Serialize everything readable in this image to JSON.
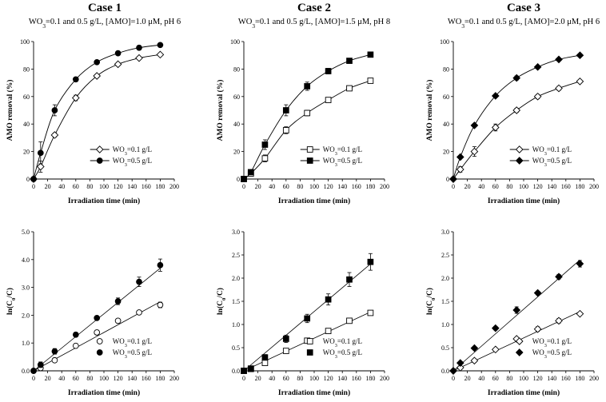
{
  "figure": {
    "cases": [
      {
        "title": "Case 1",
        "cond_main": "WO3=0.1 and 0.5 g/L, [AMO]=1.0 μM, pH 6"
      },
      {
        "title": "Case 2",
        "cond_main": "WO3=0.1 and 0.5 g/L, [AMO]=1.5 μM, pH 8"
      },
      {
        "title": "Case 3",
        "cond_main": "WO3=0.1 and 0.5 g/L, [AMO]=2.0 μM, pH 6"
      }
    ]
  },
  "chart_data": [
    {
      "id": "case1-removal",
      "type": "line",
      "case": "Case 1",
      "xlabel": "Irradiation time (min)",
      "ylabel": "AMO removal (%)",
      "xlim": [
        0,
        200
      ],
      "ylim": [
        0,
        100
      ],
      "xticks": [
        0,
        20,
        40,
        60,
        80,
        100,
        120,
        140,
        160,
        180,
        200
      ],
      "yticks": [
        0,
        20,
        40,
        60,
        80,
        100
      ],
      "legend_position": "lower-right",
      "series": [
        {
          "name": "WO3=0.1 g/L",
          "marker": "diamond-open",
          "fit": "curve",
          "x": [
            0,
            10,
            30,
            60,
            90,
            120,
            150,
            180
          ],
          "y": [
            0,
            9,
            32,
            59,
            75,
            83.5,
            88,
            90.5
          ],
          "err": [
            0,
            4,
            1.5,
            2,
            1.2,
            1.2,
            1,
            1
          ]
        },
        {
          "name": "WO3=0.5 g/L",
          "marker": "circle-filled",
          "fit": "curve",
          "x": [
            0,
            10,
            30,
            60,
            90,
            120,
            150,
            180
          ],
          "y": [
            0,
            19,
            50,
            72.5,
            85,
            91.5,
            95.5,
            97.5
          ],
          "err": [
            0,
            8,
            4,
            1.5,
            1,
            1,
            1,
            1
          ]
        }
      ]
    },
    {
      "id": "case2-removal",
      "type": "line",
      "case": "Case 2",
      "xlabel": "Irradiation time (min)",
      "ylabel": "AMO removal (%)",
      "xlim": [
        0,
        200
      ],
      "ylim": [
        0,
        100
      ],
      "xticks": [
        0,
        20,
        40,
        60,
        80,
        100,
        120,
        140,
        160,
        180,
        200
      ],
      "yticks": [
        0,
        20,
        40,
        60,
        80,
        100
      ],
      "legend_position": "lower-right",
      "series": [
        {
          "name": "WO3=0.1 g/L",
          "marker": "square-open",
          "fit": "curve",
          "x": [
            0,
            10,
            30,
            60,
            90,
            120,
            150,
            180
          ],
          "y": [
            0,
            4,
            15,
            35.5,
            48,
            57.5,
            66,
            71.5
          ],
          "err": [
            0,
            1,
            2.5,
            2.5,
            2,
            1.5,
            1.5,
            1
          ]
        },
        {
          "name": "WO3=0.5 g/L",
          "marker": "square-filled",
          "fit": "curve",
          "x": [
            0,
            10,
            30,
            60,
            90,
            120,
            150,
            180
          ],
          "y": [
            0,
            5,
            25,
            50,
            67.5,
            78.5,
            86,
            90.5
          ],
          "err": [
            0,
            1.5,
            3.5,
            4,
            3,
            2,
            1.5,
            1.5
          ]
        }
      ]
    },
    {
      "id": "case3-removal",
      "type": "line",
      "case": "Case 3",
      "xlabel": "Irradiation time (min)",
      "ylabel": "AMO removal (%)",
      "xlim": [
        0,
        200
      ],
      "ylim": [
        0,
        100
      ],
      "xticks": [
        0,
        20,
        40,
        60,
        80,
        100,
        120,
        140,
        160,
        180,
        200
      ],
      "yticks": [
        0,
        20,
        40,
        60,
        80,
        100
      ],
      "legend_position": "lower-right",
      "series": [
        {
          "name": "WO3=0.1 g/L",
          "marker": "diamond-open",
          "fit": "curve",
          "x": [
            0,
            10,
            30,
            60,
            90,
            120,
            150,
            180
          ],
          "y": [
            0,
            7,
            20,
            37.5,
            50,
            60,
            66,
            71
          ],
          "err": [
            0,
            2,
            3.5,
            2.5,
            1.5,
            1.5,
            1.5,
            1
          ]
        },
        {
          "name": "WO3=0.5 g/L",
          "marker": "diamond-filled",
          "fit": "curve",
          "x": [
            0,
            10,
            30,
            60,
            90,
            120,
            150,
            180
          ],
          "y": [
            0,
            16,
            39,
            60.5,
            73.5,
            81.5,
            87,
            90
          ],
          "err": [
            0,
            1,
            1,
            1,
            1.5,
            1,
            1,
            1
          ]
        }
      ]
    },
    {
      "id": "case1-kinetics",
      "type": "scatter",
      "case": "Case 1",
      "xlabel": "Irradiation time (min)",
      "ylabel": "ln(C0/C)",
      "xlim": [
        0,
        200
      ],
      "ylim": [
        0,
        5
      ],
      "xticks": [
        0,
        20,
        40,
        60,
        80,
        100,
        120,
        140,
        160,
        180,
        200
      ],
      "yticks": [
        0,
        1,
        2,
        3,
        4,
        5
      ],
      "ytick_decimals": 1,
      "legend_position": "lower-right",
      "series": [
        {
          "name": "WO3=0.1 g/L",
          "marker": "circle-open",
          "fit": "line",
          "slope": 0.0138,
          "x": [
            0,
            10,
            30,
            60,
            90,
            120,
            150,
            180
          ],
          "y": [
            0,
            0.1,
            0.38,
            0.9,
            1.38,
            1.8,
            2.1,
            2.37
          ],
          "err": [
            0,
            0.03,
            0.05,
            0.05,
            0.08,
            0.07,
            0.05,
            0.1
          ]
        },
        {
          "name": "WO3=0.5 g/L",
          "marker": "circle-filled",
          "fit": "line",
          "slope": 0.0205,
          "x": [
            0,
            10,
            30,
            60,
            90,
            120,
            150,
            180
          ],
          "y": [
            0,
            0.22,
            0.7,
            1.3,
            1.9,
            2.5,
            3.2,
            3.8
          ],
          "err": [
            0,
            0.1,
            0.1,
            0.07,
            0.06,
            0.12,
            0.17,
            0.22
          ]
        }
      ]
    },
    {
      "id": "case2-kinetics",
      "type": "scatter",
      "case": "Case 2",
      "xlabel": "Irradiation time (min)",
      "ylabel": "ln(C0/C)",
      "xlim": [
        0,
        200
      ],
      "ylim": [
        0,
        3
      ],
      "xticks": [
        0,
        20,
        40,
        60,
        80,
        100,
        120,
        140,
        160,
        180,
        200
      ],
      "yticks": [
        0,
        0.5,
        1,
        1.5,
        2,
        2.5,
        3
      ],
      "ytick_decimals": 1,
      "legend_position": "lower-right",
      "series": [
        {
          "name": "WO3=0.1 g/L",
          "marker": "square-open",
          "fit": "line",
          "slope": 0.00705,
          "x": [
            0,
            10,
            30,
            60,
            90,
            120,
            150,
            180
          ],
          "y": [
            0,
            0.04,
            0.17,
            0.43,
            0.65,
            0.86,
            1.08,
            1.25
          ],
          "err": [
            0,
            0.01,
            0.02,
            0.05,
            0.05,
            0.04,
            0.04,
            0.03
          ]
        },
        {
          "name": "WO3=0.5 g/L",
          "marker": "square-filled",
          "fit": "line",
          "slope": 0.0128,
          "x": [
            0,
            10,
            30,
            60,
            90,
            120,
            150,
            180
          ],
          "y": [
            0,
            0.05,
            0.29,
            0.69,
            1.13,
            1.54,
            1.97,
            2.35
          ],
          "err": [
            0,
            0.02,
            0.06,
            0.08,
            0.09,
            0.12,
            0.15,
            0.18
          ]
        }
      ]
    },
    {
      "id": "case3-kinetics",
      "type": "scatter",
      "case": "Case 3",
      "xlabel": "Irradiation time (min)",
      "ylabel": "ln(C0/C)",
      "xlim": [
        0,
        200
      ],
      "ylim": [
        0,
        3
      ],
      "xticks": [
        0,
        20,
        40,
        60,
        80,
        100,
        120,
        140,
        160,
        180,
        200
      ],
      "yticks": [
        0,
        0.5,
        1,
        1.5,
        2,
        2.5,
        3
      ],
      "ytick_decimals": 1,
      "legend_position": "lower-right",
      "series": [
        {
          "name": "WO3=0.1 g/L",
          "marker": "diamond-open",
          "fit": "line",
          "slope": 0.0071,
          "x": [
            0,
            10,
            30,
            60,
            90,
            120,
            150,
            180
          ],
          "y": [
            0,
            0.07,
            0.22,
            0.46,
            0.69,
            0.9,
            1.08,
            1.23
          ],
          "err": [
            0,
            0.02,
            0.04,
            0.03,
            0.03,
            0.05,
            0.05,
            0.03
          ]
        },
        {
          "name": "WO3=0.5 g/L",
          "marker": "diamond-filled",
          "fit": "line",
          "slope": 0.0133,
          "x": [
            0,
            10,
            30,
            60,
            90,
            120,
            150,
            180
          ],
          "y": [
            0,
            0.17,
            0.49,
            0.92,
            1.31,
            1.68,
            2.03,
            2.31
          ],
          "err": [
            0,
            0.02,
            0.03,
            0.04,
            0.07,
            0.04,
            0.05,
            0.07
          ]
        }
      ]
    }
  ]
}
